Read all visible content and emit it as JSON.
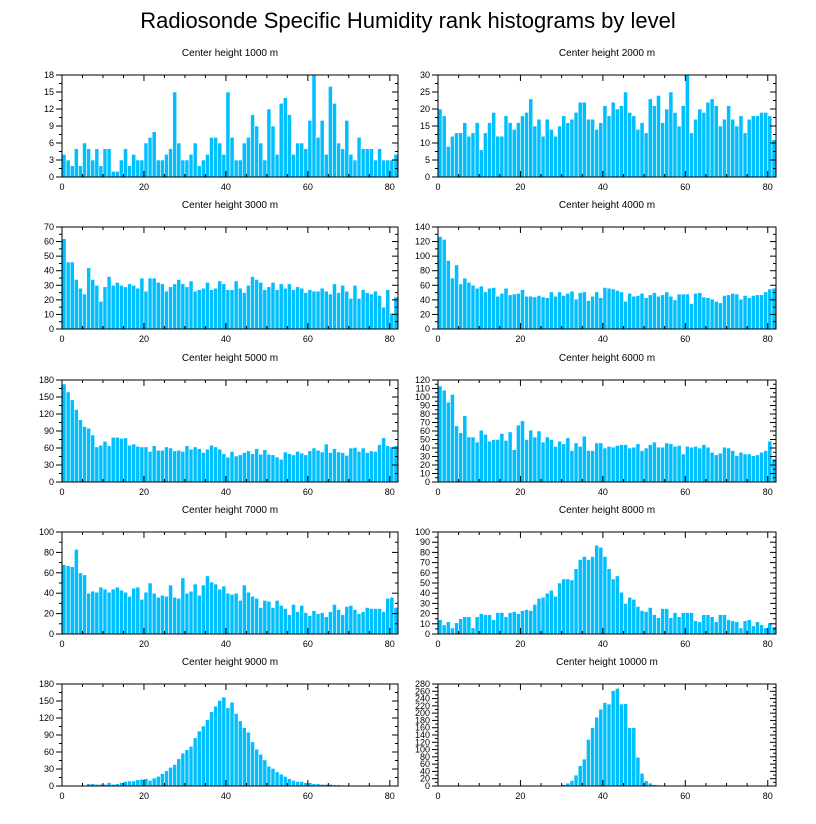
{
  "title": "Radiosonde Specific Humidity rank histograms by level",
  "colors": {
    "bar": "#00bfff",
    "bar_edge": "#ffffff",
    "axis": "#000000"
  },
  "chart_data": [
    {
      "type": "bar",
      "title": "Center height 1000 m",
      "xlim": [
        0,
        82
      ],
      "xticks": [
        0,
        20,
        40,
        60,
        80
      ],
      "ylim": [
        0,
        18
      ],
      "yticks": [
        0,
        3,
        6,
        9,
        12,
        15,
        18
      ],
      "values": [
        4,
        3,
        2,
        5,
        2,
        6,
        5,
        3,
        5,
        2,
        5,
        5,
        1,
        1,
        3,
        5,
        2,
        4,
        3,
        3,
        6,
        7,
        8,
        3,
        3,
        4,
        5,
        15,
        6,
        3,
        3,
        4,
        6,
        2,
        3,
        4,
        7,
        7,
        6,
        4,
        15,
        7,
        3,
        3,
        6,
        7,
        11,
        9,
        6,
        3,
        12,
        9,
        4,
        13,
        14,
        11,
        4,
        6,
        6,
        5,
        10,
        18,
        7,
        10,
        4,
        16,
        13,
        6,
        5,
        10,
        4,
        3,
        7,
        5,
        5,
        5,
        3,
        5,
        3,
        3,
        3,
        4
      ]
    },
    {
      "type": "bar",
      "title": "Center height 2000 m",
      "xlim": [
        0,
        82
      ],
      "xticks": [
        0,
        20,
        40,
        60,
        80
      ],
      "ylim": [
        0,
        30
      ],
      "yticks": [
        0,
        5,
        10,
        15,
        20,
        25,
        30
      ],
      "values": [
        20,
        18,
        9,
        12,
        13,
        13,
        16,
        12,
        13,
        16,
        8,
        13,
        16,
        19,
        12,
        12,
        18,
        16,
        14,
        16,
        18,
        19,
        23,
        15,
        17,
        12,
        17,
        14,
        12,
        15,
        18,
        16,
        17,
        19,
        22,
        22,
        17,
        17,
        14,
        16,
        21,
        18,
        22,
        20,
        21,
        25,
        19,
        18,
        14,
        16,
        13,
        23,
        21,
        24,
        16,
        20,
        25,
        19,
        15,
        21,
        30,
        13,
        17,
        20,
        19,
        22,
        23,
        21,
        15,
        17,
        21,
        17,
        15,
        18,
        13,
        17,
        18,
        18,
        19,
        19,
        18,
        11
      ]
    },
    {
      "type": "bar",
      "title": "Center height 3000 m",
      "xlim": [
        0,
        82
      ],
      "xticks": [
        0,
        20,
        40,
        60,
        80
      ],
      "ylim": [
        0,
        70
      ],
      "yticks": [
        0,
        10,
        20,
        30,
        40,
        50,
        60,
        70
      ],
      "values": [
        62,
        46,
        46,
        34,
        28,
        24,
        42,
        34,
        30,
        19,
        29,
        36,
        30,
        32,
        30,
        29,
        31,
        30,
        28,
        35,
        26,
        35,
        35,
        32,
        31,
        26,
        29,
        31,
        34,
        31,
        29,
        33,
        26,
        27,
        28,
        32,
        27,
        28,
        33,
        31,
        27,
        27,
        33,
        28,
        25,
        30,
        36,
        34,
        32,
        27,
        29,
        32,
        27,
        31,
        28,
        31,
        27,
        29,
        28,
        25,
        27,
        26,
        26,
        28,
        26,
        24,
        31,
        25,
        30,
        26,
        21,
        30,
        21,
        27,
        25,
        24,
        26,
        23,
        15,
        27,
        11,
        22
      ]
    },
    {
      "type": "bar",
      "title": "Center height 4000 m",
      "xlim": [
        0,
        82
      ],
      "xticks": [
        0,
        20,
        40,
        60,
        80
      ],
      "ylim": [
        0,
        140
      ],
      "yticks": [
        0,
        20,
        40,
        60,
        80,
        100,
        120,
        140
      ],
      "values": [
        127,
        123,
        94,
        70,
        88,
        62,
        70,
        64,
        60,
        56,
        59,
        51,
        56,
        57,
        45,
        49,
        56,
        47,
        48,
        49,
        54,
        45,
        45,
        44,
        46,
        44,
        43,
        51,
        45,
        51,
        46,
        49,
        52,
        41,
        50,
        51,
        39,
        45,
        51,
        43,
        57,
        56,
        55,
        53,
        51,
        38,
        49,
        45,
        46,
        49,
        43,
        47,
        50,
        45,
        47,
        51,
        45,
        40,
        48,
        48,
        48,
        35,
        49,
        50,
        44,
        43,
        41,
        38,
        36,
        46,
        47,
        49,
        48,
        41,
        46,
        43,
        46,
        47,
        47,
        51,
        55,
        56
      ]
    },
    {
      "type": "bar",
      "title": "Center height 5000 m",
      "xlim": [
        0,
        82
      ],
      "xticks": [
        0,
        20,
        40,
        60,
        80
      ],
      "ylim": [
        0,
        180
      ],
      "yticks": [
        0,
        30,
        60,
        90,
        120,
        150,
        180
      ],
      "values": [
        173,
        159,
        145,
        128,
        110,
        98,
        95,
        83,
        62,
        65,
        72,
        64,
        79,
        79,
        77,
        78,
        65,
        67,
        63,
        62,
        62,
        54,
        64,
        56,
        56,
        62,
        60,
        55,
        56,
        54,
        64,
        58,
        62,
        59,
        52,
        58,
        65,
        62,
        58,
        50,
        44,
        54,
        46,
        48,
        52,
        55,
        50,
        59,
        49,
        57,
        49,
        48,
        44,
        40,
        53,
        50,
        48,
        54,
        51,
        48,
        55,
        60,
        56,
        53,
        67,
        52,
        59,
        53,
        52,
        47,
        60,
        61,
        54,
        60,
        52,
        55,
        54,
        66,
        78,
        64,
        62,
        64
      ]
    },
    {
      "type": "bar",
      "title": "Center height 6000 m",
      "xlim": [
        0,
        82
      ],
      "xticks": [
        0,
        20,
        40,
        60,
        80
      ],
      "ylim": [
        0,
        120
      ],
      "yticks": [
        0,
        10,
        20,
        30,
        40,
        50,
        60,
        70,
        80,
        90,
        100,
        110,
        120
      ],
      "values": [
        113,
        108,
        94,
        103,
        66,
        58,
        78,
        53,
        53,
        47,
        61,
        56,
        48,
        50,
        50,
        57,
        49,
        59,
        38,
        67,
        72,
        50,
        61,
        53,
        60,
        47,
        53,
        50,
        42,
        48,
        45,
        52,
        37,
        46,
        42,
        54,
        37,
        37,
        46,
        46,
        40,
        42,
        41,
        43,
        44,
        44,
        40,
        41,
        45,
        37,
        40,
        44,
        47,
        41,
        41,
        46,
        45,
        42,
        43,
        33,
        42,
        41,
        42,
        40,
        44,
        41,
        35,
        32,
        34,
        41,
        40,
        37,
        31,
        35,
        33,
        33,
        31,
        32,
        35,
        37,
        48,
        27
      ]
    },
    {
      "type": "bar",
      "title": "Center height 7000 m",
      "xlim": [
        0,
        82
      ],
      "xticks": [
        0,
        20,
        40,
        60,
        80
      ],
      "ylim": [
        0,
        100
      ],
      "yticks": [
        0,
        20,
        40,
        60,
        80,
        100
      ],
      "values": [
        68,
        67,
        66,
        83,
        60,
        58,
        40,
        42,
        41,
        46,
        44,
        41,
        44,
        46,
        43,
        41,
        37,
        45,
        46,
        34,
        41,
        50,
        40,
        36,
        38,
        37,
        48,
        36,
        35,
        55,
        40,
        42,
        49,
        38,
        48,
        57,
        51,
        49,
        44,
        47,
        40,
        39,
        40,
        33,
        48,
        41,
        37,
        35,
        26,
        33,
        32,
        26,
        33,
        28,
        25,
        19,
        29,
        22,
        28,
        21,
        18,
        23,
        20,
        21,
        17,
        22,
        29,
        24,
        19,
        27,
        28,
        24,
        20,
        22,
        26,
        25,
        25,
        25,
        22,
        35,
        36,
        26
      ]
    },
    {
      "type": "bar",
      "title": "Center height 8000 m",
      "xlim": [
        0,
        82
      ],
      "xticks": [
        0,
        20,
        40,
        60,
        80
      ],
      "ylim": [
        0,
        100
      ],
      "yticks": [
        0,
        10,
        20,
        30,
        40,
        50,
        60,
        70,
        80,
        90,
        100
      ],
      "values": [
        14,
        9,
        12,
        6,
        11,
        15,
        17,
        17,
        6,
        17,
        20,
        19,
        19,
        14,
        21,
        21,
        17,
        21,
        22,
        20,
        23,
        24,
        23,
        29,
        35,
        36,
        40,
        43,
        37,
        50,
        54,
        54,
        53,
        64,
        73,
        76,
        73,
        76,
        87,
        85,
        76,
        64,
        54,
        57,
        41,
        30,
        36,
        34,
        27,
        23,
        22,
        26,
        19,
        16,
        25,
        25,
        16,
        21,
        17,
        21,
        21,
        21,
        13,
        12,
        19,
        19,
        17,
        12,
        19,
        19,
        14,
        13,
        12,
        6,
        13,
        14,
        8,
        12,
        9,
        6,
        11,
        7
      ]
    },
    {
      "type": "bar",
      "title": "Center height 9000 m",
      "xlim": [
        0,
        82
      ],
      "xticks": [
        0,
        20,
        40,
        60,
        80
      ],
      "ylim": [
        0,
        180
      ],
      "yticks": [
        0,
        30,
        60,
        90,
        120,
        150,
        180
      ],
      "values": [
        0,
        0,
        0,
        0,
        0,
        0,
        4,
        4,
        3,
        3,
        3,
        6,
        3,
        4,
        6,
        8,
        9,
        9,
        11,
        12,
        13,
        10,
        14,
        17,
        22,
        27,
        33,
        38,
        48,
        58,
        64,
        70,
        85,
        97,
        106,
        117,
        131,
        141,
        151,
        157,
        138,
        148,
        128,
        115,
        103,
        95,
        78,
        65,
        56,
        46,
        35,
        31,
        25,
        21,
        17,
        13,
        10,
        8,
        8,
        6,
        6,
        4,
        4,
        3,
        3,
        3,
        2,
        2,
        1,
        1,
        1,
        1,
        1,
        1,
        0,
        0,
        0,
        0,
        0,
        0,
        0,
        0
      ]
    },
    {
      "type": "bar",
      "title": "Center height 10000 m",
      "xlim": [
        0,
        82
      ],
      "xticks": [
        0,
        20,
        40,
        60,
        80
      ],
      "ylim": [
        0,
        280
      ],
      "yticks": [
        0,
        20,
        40,
        60,
        80,
        100,
        120,
        140,
        160,
        180,
        200,
        220,
        240,
        260,
        280
      ],
      "values": [
        0,
        0,
        0,
        0,
        0,
        0,
        0,
        0,
        0,
        0,
        0,
        0,
        0,
        0,
        0,
        0,
        0,
        0,
        0,
        0,
        0,
        0,
        0,
        0,
        0,
        0,
        0,
        0,
        2,
        2,
        4,
        8,
        15,
        30,
        56,
        74,
        128,
        160,
        189,
        211,
        229,
        225,
        262,
        268,
        225,
        226,
        160,
        160,
        79,
        35,
        14,
        8,
        4,
        3,
        2,
        1,
        0,
        0,
        0,
        0,
        0,
        0,
        0,
        0,
        0,
        0,
        0,
        0,
        0,
        0,
        0,
        0,
        0,
        0,
        0,
        0,
        0,
        0,
        0,
        0,
        0,
        0
      ]
    }
  ]
}
